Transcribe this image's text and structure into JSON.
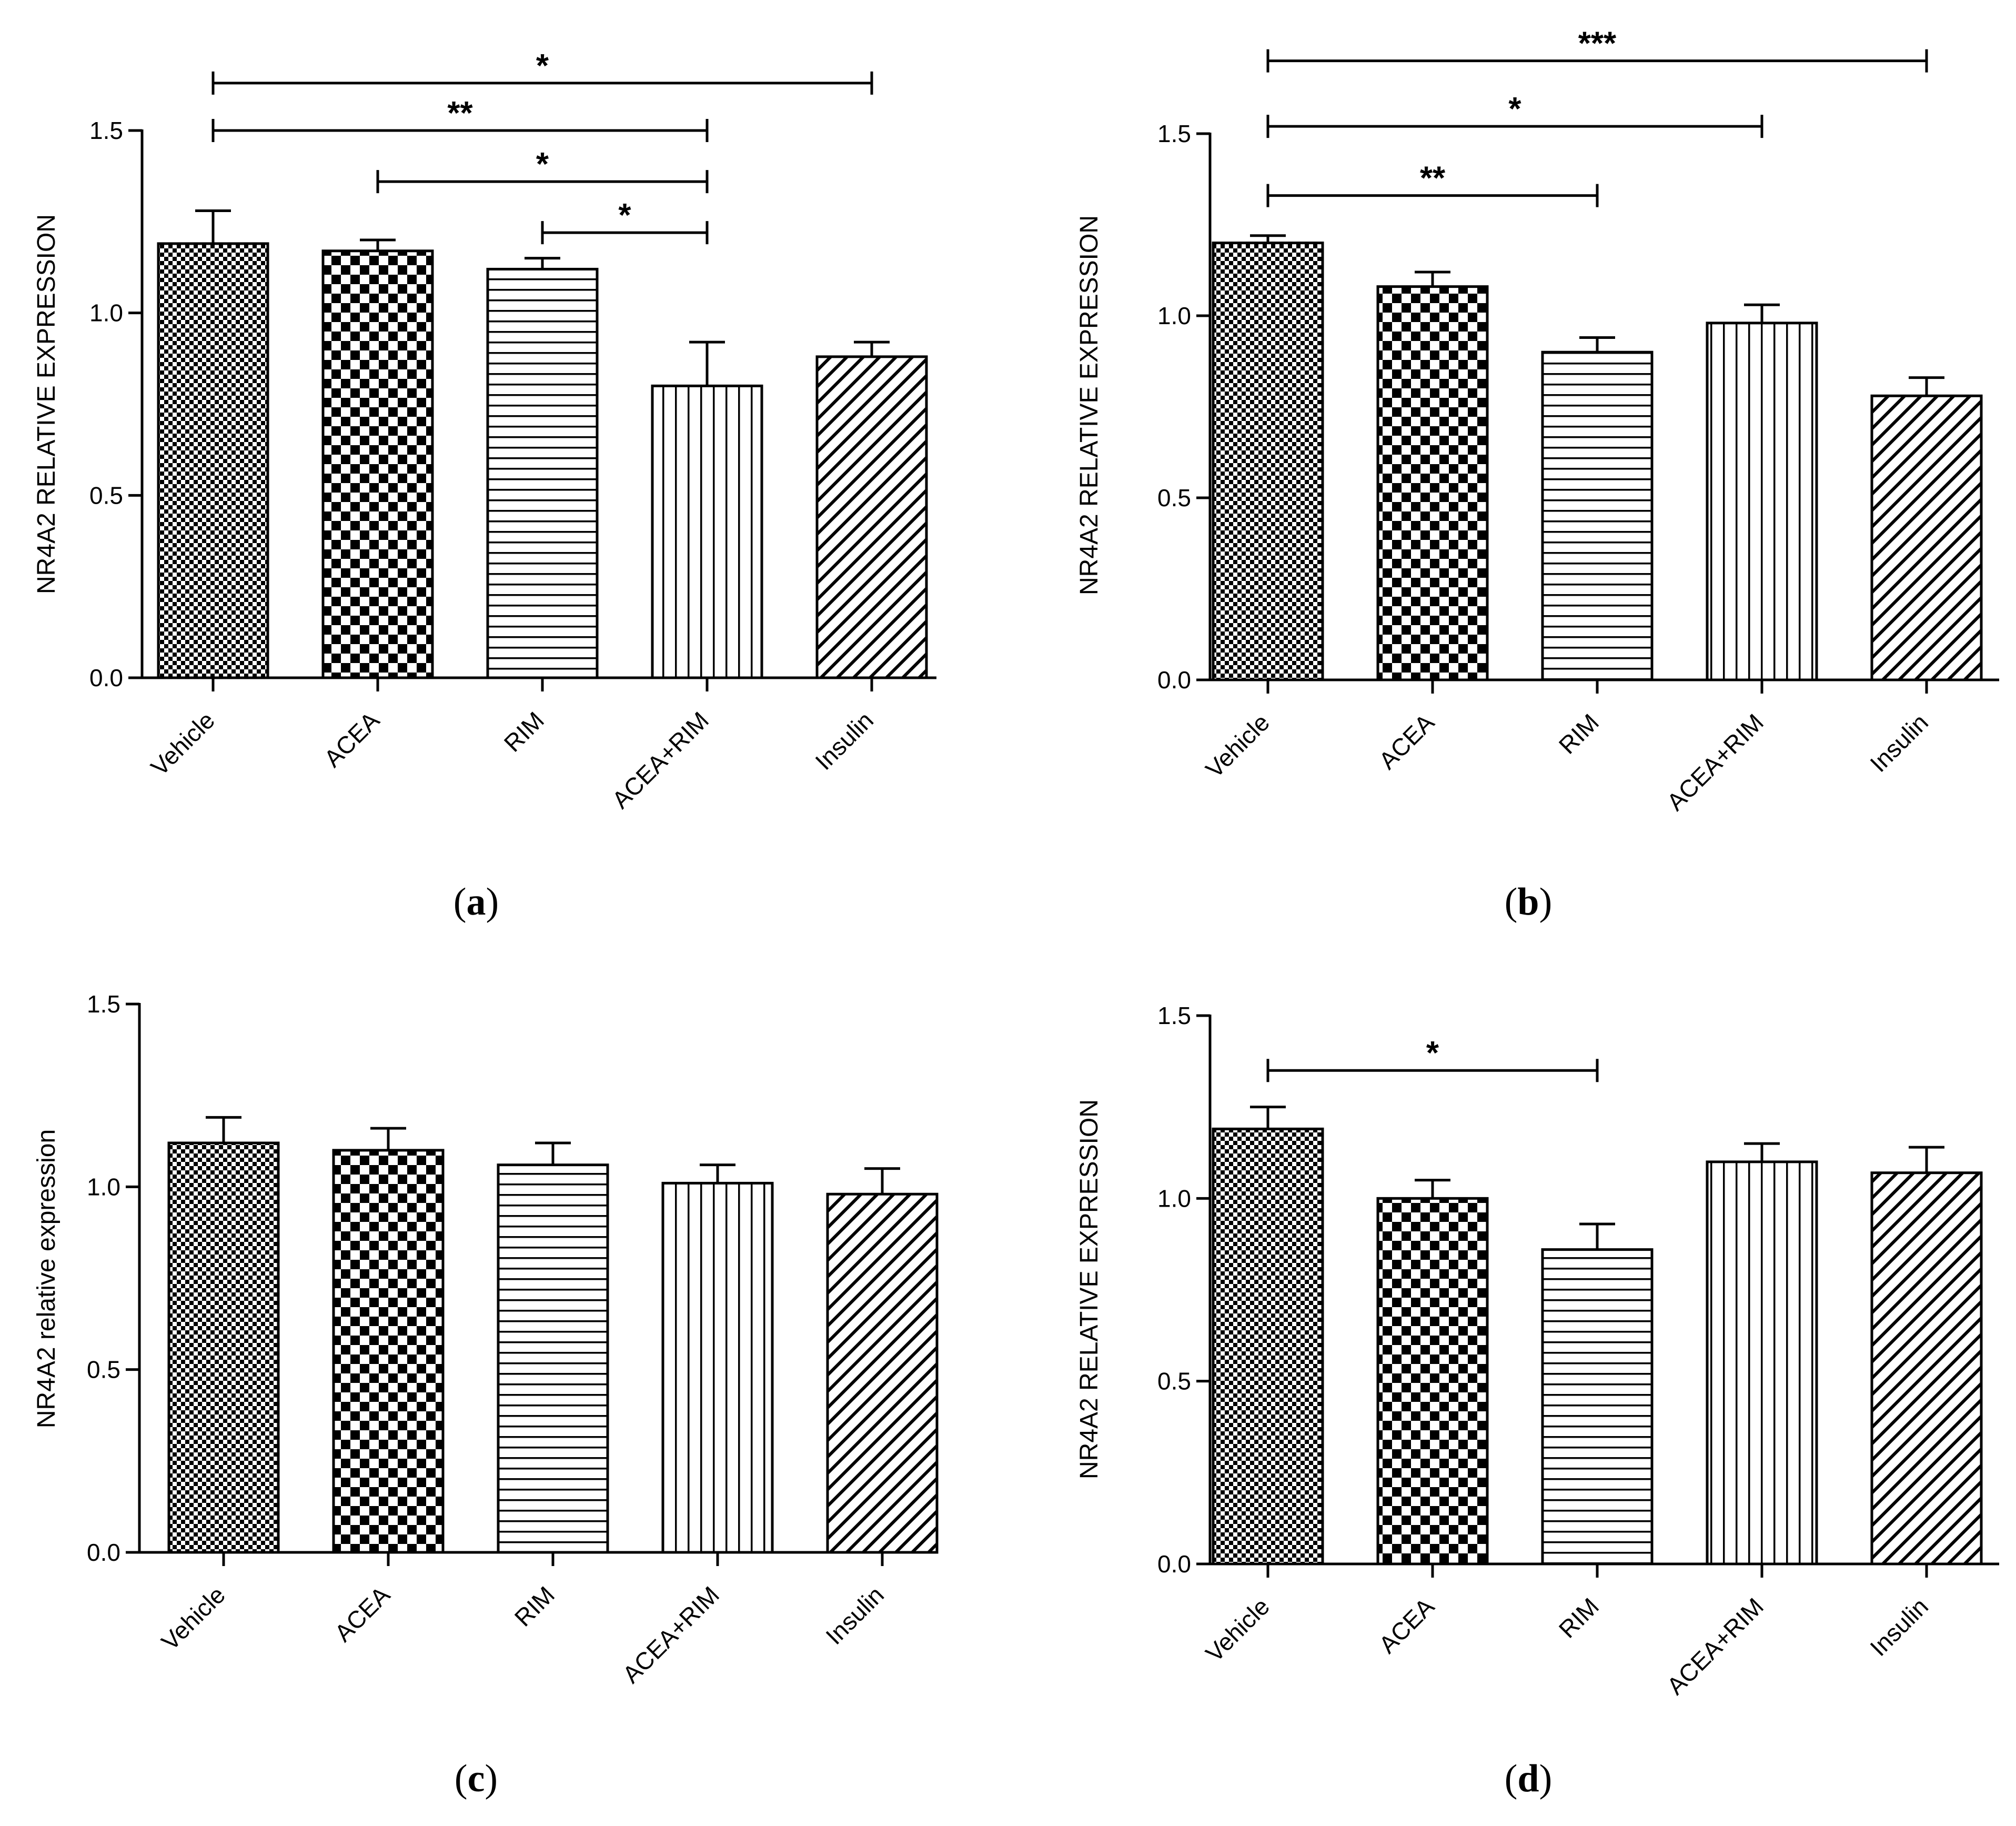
{
  "chart_data": [
    {
      "panel": "a",
      "type": "bar",
      "ylabel": "NR4A2 RELATIVE EXPRESSION",
      "categories": [
        "Vehicle",
        "ACEA",
        "RIM",
        "ACEA+RIM",
        "Insulin"
      ],
      "values": [
        1.19,
        1.17,
        1.12,
        0.8,
        0.88
      ],
      "errors": [
        0.09,
        0.03,
        0.03,
        0.12,
        0.04
      ],
      "ylim": [
        0,
        1.5
      ],
      "yticks": [
        "0.0",
        "0.5",
        "1.0",
        "1.5"
      ],
      "significance": [
        {
          "from": 0,
          "to": 4,
          "label": "*",
          "y": 1.63
        },
        {
          "from": 0,
          "to": 3,
          "label": "**",
          "y": 1.5
        },
        {
          "from": 1,
          "to": 3,
          "label": "*",
          "y": 1.36
        },
        {
          "from": 2,
          "to": 3,
          "label": "*",
          "y": 1.22
        }
      ]
    },
    {
      "panel": "b",
      "type": "bar",
      "ylabel": "NR4A2 RELATIVE EXPRESSION",
      "categories": [
        "Vehicle",
        "ACEA",
        "RIM",
        "ACEA+RIM",
        "Insulin"
      ],
      "values": [
        1.2,
        1.08,
        0.9,
        0.98,
        0.78
      ],
      "errors": [
        0.02,
        0.04,
        0.04,
        0.05,
        0.05
      ],
      "ylim": [
        0,
        1.5
      ],
      "yticks": [
        "0.0",
        "0.5",
        "1.0",
        "1.5"
      ],
      "significance": [
        {
          "from": 0,
          "to": 4,
          "label": "***",
          "y": 1.7
        },
        {
          "from": 0,
          "to": 3,
          "label": "*",
          "y": 1.52
        },
        {
          "from": 0,
          "to": 2,
          "label": "**",
          "y": 1.33
        }
      ]
    },
    {
      "panel": "c",
      "type": "bar",
      "ylabel": "NR4A2 relative expression",
      "categories": [
        "Vehicle",
        "ACEA",
        "RIM",
        "ACEA+RIM",
        "Insulin"
      ],
      "values": [
        1.12,
        1.1,
        1.06,
        1.01,
        0.98
      ],
      "errors": [
        0.07,
        0.06,
        0.06,
        0.05,
        0.07
      ],
      "ylim": [
        0,
        1.5
      ],
      "yticks": [
        "0.0",
        "0.5",
        "1.0",
        "1.5"
      ],
      "significance": []
    },
    {
      "panel": "d",
      "type": "bar",
      "ylabel": "NR4A2 RELATIVE EXPRESSION",
      "categories": [
        "Vehicle",
        "ACEA",
        "RIM",
        "ACEA+RIM",
        "Insulin"
      ],
      "values": [
        1.19,
        1.0,
        0.86,
        1.1,
        1.07
      ],
      "errors": [
        0.06,
        0.05,
        0.07,
        0.05,
        0.07
      ],
      "ylim": [
        0,
        1.5
      ],
      "yticks": [
        "0.0",
        "0.5",
        "1.0",
        "1.5"
      ],
      "significance": [
        {
          "from": 0,
          "to": 2,
          "label": "*",
          "y": 1.35
        }
      ]
    }
  ],
  "panel_labels": [
    "a",
    "b",
    "c",
    "d"
  ],
  "colors": {
    "stroke": "#000000",
    "fill": "#ffffff",
    "dark": "#000000"
  }
}
